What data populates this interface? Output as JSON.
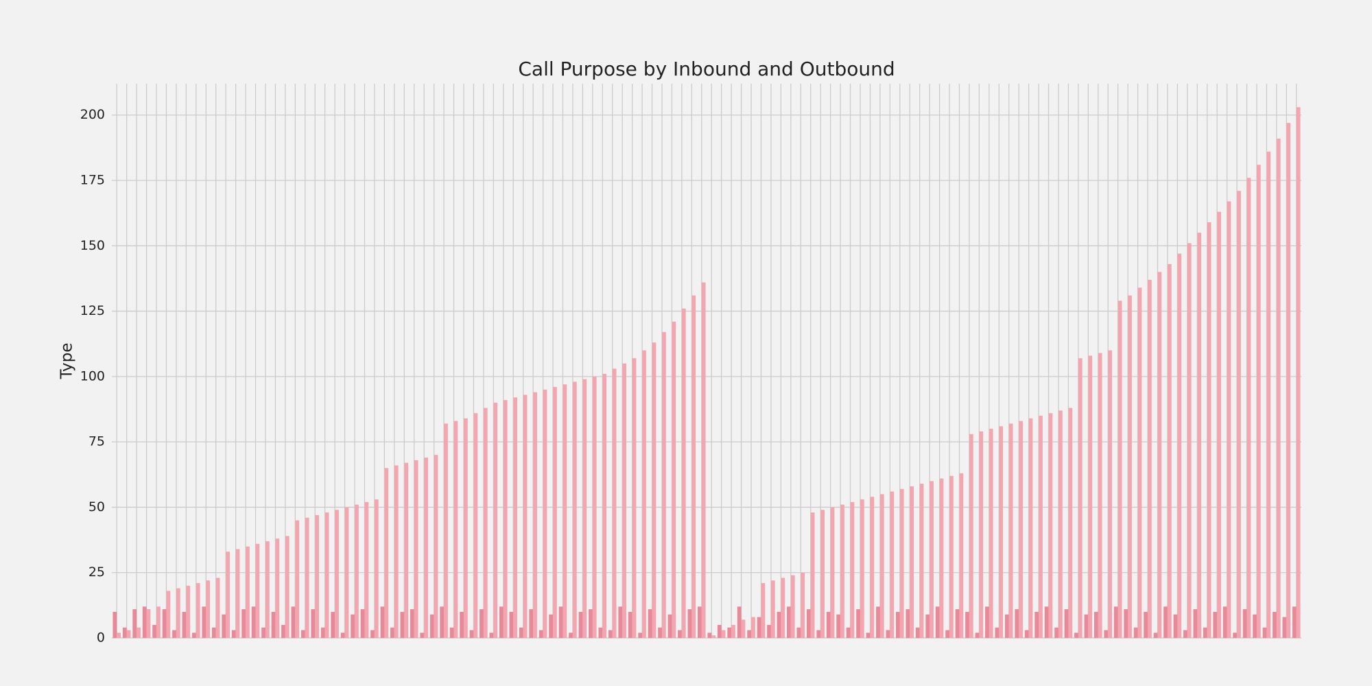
{
  "chart_data": {
    "type": "bar",
    "title": "Call Purpose by Inbound and Outbound",
    "ylabel": "Type",
    "categories": [
      null,
      null,
      null,
      null,
      null,
      null,
      null,
      null,
      null,
      null,
      null,
      null,
      null,
      null,
      null,
      null,
      null,
      null,
      null,
      null,
      null,
      null,
      null,
      null,
      null,
      null,
      null,
      null,
      null,
      null,
      null,
      null,
      null,
      null,
      null,
      null,
      null,
      null,
      null,
      null,
      null,
      null,
      null,
      null,
      null,
      null,
      null,
      null,
      null,
      null,
      null,
      null,
      null,
      null,
      null,
      null,
      null,
      null,
      null,
      null,
      null,
      null,
      null,
      null,
      null,
      null,
      null,
      null,
      null,
      null,
      null,
      null,
      null,
      null,
      null,
      null,
      null,
      null,
      null,
      null,
      null,
      null,
      null,
      null,
      null,
      null,
      null,
      null,
      null,
      null,
      null,
      null,
      null,
      null,
      null,
      null,
      null,
      null,
      null,
      null,
      null,
      null,
      null,
      null,
      null,
      null,
      null,
      null,
      null,
      null,
      null,
      null,
      null,
      null,
      null,
      null,
      null,
      null,
      null,
      null
    ],
    "series": [
      {
        "color": "#e8899a",
        "values": [
          10,
          4,
          11,
          12,
          5,
          11,
          3,
          10,
          2,
          12,
          4,
          9,
          3,
          11,
          12,
          4,
          10,
          5,
          12,
          3,
          11,
          4,
          10,
          2,
          9,
          11,
          3,
          12,
          4,
          10,
          11,
          2,
          9,
          12,
          4,
          10,
          3,
          11,
          2,
          12,
          10,
          4,
          11,
          3,
          9,
          12,
          2,
          10,
          11,
          4,
          3,
          12,
          10,
          2,
          11,
          4,
          9,
          3,
          11,
          12,
          2,
          5,
          4,
          12,
          3,
          8,
          5,
          10,
          12,
          4,
          11,
          3,
          10,
          9,
          4,
          11,
          2,
          12,
          3,
          10,
          11,
          4,
          9,
          12,
          3,
          11,
          10,
          2,
          12,
          4,
          9,
          11,
          3,
          10,
          12,
          4,
          11,
          2,
          9,
          10,
          3,
          12,
          11,
          4,
          10,
          2,
          12,
          9,
          3,
          11,
          4,
          10,
          12,
          2,
          11,
          9,
          4,
          10,
          8,
          12
        ]
      },
      {
        "color": "#f4a6b0",
        "values": [
          2,
          3,
          4,
          11,
          12,
          18,
          19,
          20,
          21,
          22,
          23,
          33,
          34,
          35,
          36,
          37,
          38,
          39,
          45,
          46,
          47,
          48,
          49,
          50,
          51,
          52,
          53,
          65,
          66,
          67,
          68,
          69,
          70,
          82,
          83,
          84,
          86,
          88,
          90,
          91,
          92,
          93,
          94,
          95,
          96,
          97,
          98,
          99,
          100,
          101,
          103,
          105,
          107,
          110,
          113,
          117,
          121,
          126,
          131,
          136,
          1,
          3,
          5,
          7,
          8,
          21,
          22,
          23,
          24,
          25,
          48,
          49,
          50,
          51,
          52,
          53,
          54,
          55,
          56,
          57,
          58,
          59,
          60,
          61,
          62,
          63,
          78,
          79,
          80,
          81,
          82,
          83,
          84,
          85,
          86,
          87,
          88,
          107,
          108,
          109,
          110,
          129,
          131,
          134,
          137,
          140,
          143,
          147,
          151,
          155,
          159,
          163,
          167,
          171,
          176,
          181,
          186,
          191,
          197,
          203
        ]
      }
    ],
    "ylim": [
      0,
      212
    ],
    "yticks": [
      0,
      25,
      50,
      75,
      100,
      125,
      150,
      175,
      200
    ],
    "grid": true
  }
}
